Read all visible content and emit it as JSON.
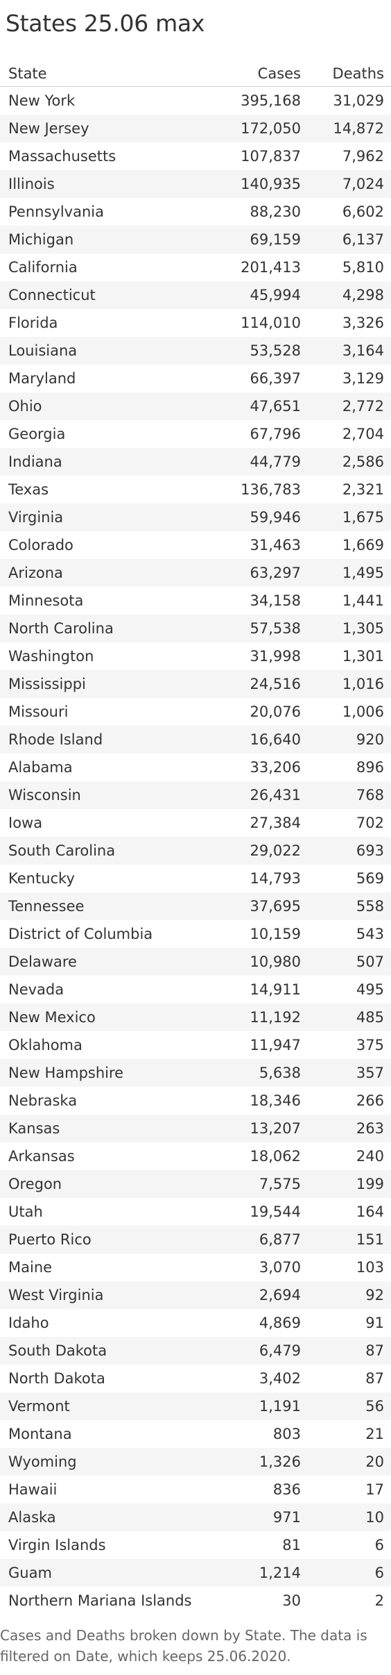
{
  "title": "States 25.06 max",
  "footer_text": "Cases and Deaths broken down by State.  The data is filtered on Date, which keeps 25.06.2020.",
  "chart_data": {
    "type": "table",
    "title": "States 25.06 max",
    "columns": [
      "State",
      "Cases",
      "Deaths"
    ],
    "rows": [
      [
        "New York",
        "395,168",
        "31,029"
      ],
      [
        "New Jersey",
        "172,050",
        "14,872"
      ],
      [
        "Massachusetts",
        "107,837",
        "7,962"
      ],
      [
        "Illinois",
        "140,935",
        "7,024"
      ],
      [
        "Pennsylvania",
        "88,230",
        "6,602"
      ],
      [
        "Michigan",
        "69,159",
        "6,137"
      ],
      [
        "California",
        "201,413",
        "5,810"
      ],
      [
        "Connecticut",
        "45,994",
        "4,298"
      ],
      [
        "Florida",
        "114,010",
        "3,326"
      ],
      [
        "Louisiana",
        "53,528",
        "3,164"
      ],
      [
        "Maryland",
        "66,397",
        "3,129"
      ],
      [
        "Ohio",
        "47,651",
        "2,772"
      ],
      [
        "Georgia",
        "67,796",
        "2,704"
      ],
      [
        "Indiana",
        "44,779",
        "2,586"
      ],
      [
        "Texas",
        "136,783",
        "2,321"
      ],
      [
        "Virginia",
        "59,946",
        "1,675"
      ],
      [
        "Colorado",
        "31,463",
        "1,669"
      ],
      [
        "Arizona",
        "63,297",
        "1,495"
      ],
      [
        "Minnesota",
        "34,158",
        "1,441"
      ],
      [
        "North Carolina",
        "57,538",
        "1,305"
      ],
      [
        "Washington",
        "31,998",
        "1,301"
      ],
      [
        "Mississippi",
        "24,516",
        "1,016"
      ],
      [
        "Missouri",
        "20,076",
        "1,006"
      ],
      [
        "Rhode Island",
        "16,640",
        "920"
      ],
      [
        "Alabama",
        "33,206",
        "896"
      ],
      [
        "Wisconsin",
        "26,431",
        "768"
      ],
      [
        "Iowa",
        "27,384",
        "702"
      ],
      [
        "South Carolina",
        "29,022",
        "693"
      ],
      [
        "Kentucky",
        "14,793",
        "569"
      ],
      [
        "Tennessee",
        "37,695",
        "558"
      ],
      [
        "District of Columbia",
        "10,159",
        "543"
      ],
      [
        "Delaware",
        "10,980",
        "507"
      ],
      [
        "Nevada",
        "14,911",
        "495"
      ],
      [
        "New Mexico",
        "11,192",
        "485"
      ],
      [
        "Oklahoma",
        "11,947",
        "375"
      ],
      [
        "New Hampshire",
        "5,638",
        "357"
      ],
      [
        "Nebraska",
        "18,346",
        "266"
      ],
      [
        "Kansas",
        "13,207",
        "263"
      ],
      [
        "Arkansas",
        "18,062",
        "240"
      ],
      [
        "Oregon",
        "7,575",
        "199"
      ],
      [
        "Utah",
        "19,544",
        "164"
      ],
      [
        "Puerto Rico",
        "6,877",
        "151"
      ],
      [
        "Maine",
        "3,070",
        "103"
      ],
      [
        "West Virginia",
        "2,694",
        "92"
      ],
      [
        "Idaho",
        "4,869",
        "91"
      ],
      [
        "South Dakota",
        "6,479",
        "87"
      ],
      [
        "North Dakota",
        "3,402",
        "87"
      ],
      [
        "Vermont",
        "1,191",
        "56"
      ],
      [
        "Montana",
        "803",
        "21"
      ],
      [
        "Wyoming",
        "1,326",
        "20"
      ],
      [
        "Hawaii",
        "836",
        "17"
      ],
      [
        "Alaska",
        "971",
        "10"
      ],
      [
        "Virgin Islands",
        "81",
        "6"
      ],
      [
        "Guam",
        "1,214",
        "6"
      ],
      [
        "Northern Mariana Islands",
        "30",
        "2"
      ]
    ]
  }
}
